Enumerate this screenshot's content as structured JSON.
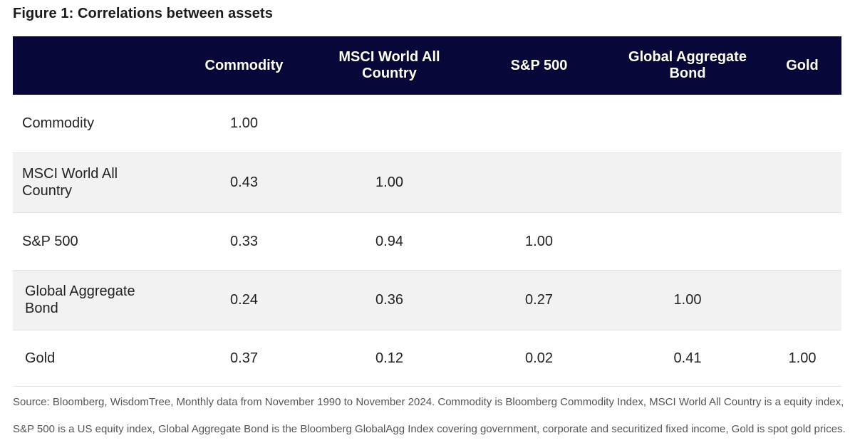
{
  "figure": {
    "title": "Figure 1: Correlations between assets"
  },
  "table": {
    "headers": [
      "",
      "Commodity",
      "MSCI World All Country",
      "S&P 500",
      "Global Aggregate Bond",
      "Gold"
    ],
    "rows": [
      {
        "label": "Commodity",
        "values": [
          "1.00",
          "",
          "",
          "",
          ""
        ]
      },
      {
        "label": "MSCI World All Country",
        "values": [
          "0.43",
          "1.00",
          "",
          "",
          ""
        ]
      },
      {
        "label": "S&P 500",
        "values": [
          "0.33",
          "0.94",
          "1.00",
          "",
          ""
        ]
      },
      {
        "label": "Global Aggregate Bond",
        "values": [
          "0.24",
          "0.36",
          "0.27",
          "1.00",
          ""
        ]
      },
      {
        "label": "Gold",
        "values": [
          "0.37",
          "0.12",
          "0.02",
          "0.41",
          "1.00"
        ]
      }
    ]
  },
  "source": {
    "text": "Source: Bloomberg, WisdomTree, Monthly data from November 1990 to November 2024. Commodity is Bloomberg Commodity Index, MSCI World All Country is a equity index, S&P 500 is a US equity index, Global Aggregate Bond is the Bloomberg GlobalAgg Index covering government, corporate and securitized fixed income, Gold is spot gold prices."
  },
  "colors": {
    "header_bg": "#07073a",
    "header_text": "#ffffff",
    "striped_row": "#f2f2f2"
  }
}
